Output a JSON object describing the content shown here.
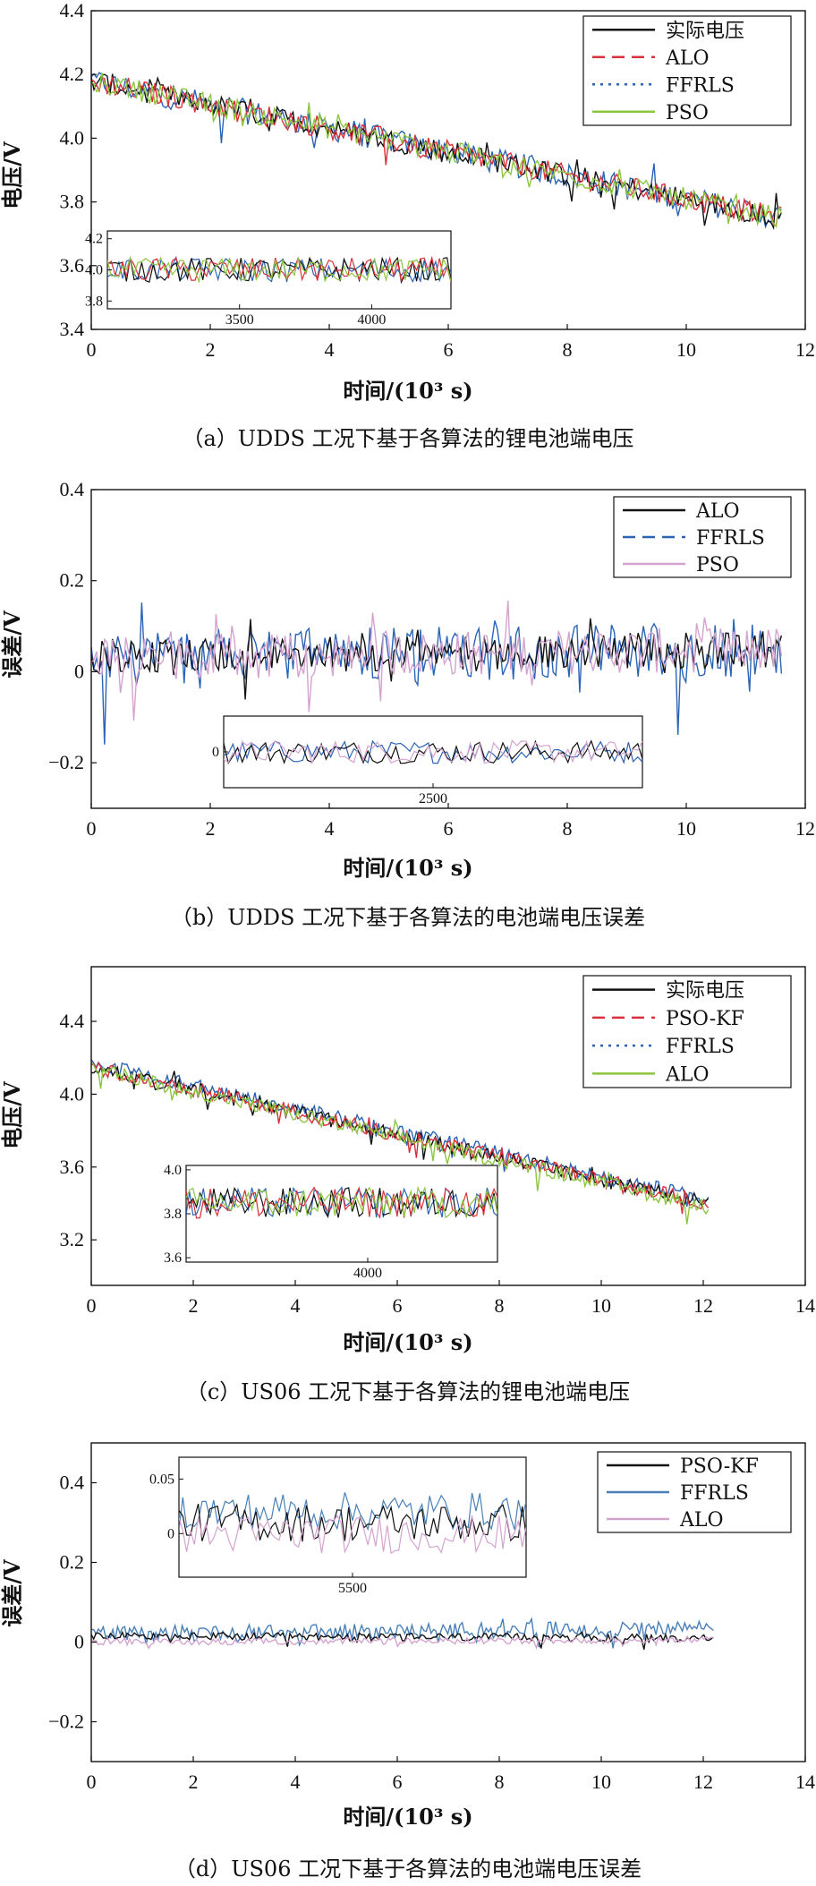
{
  "chart_data": [
    {
      "id": "a",
      "type": "line",
      "caption": "（a）UDDS 工况下基于各算法的锂电池端电压",
      "xlabel": "时间/(10³ s)",
      "ylabel": "电压/V",
      "xlim": [
        0,
        12
      ],
      "ylim": [
        3.4,
        4.4
      ],
      "xticks": [
        "0",
        "2",
        "4",
        "6",
        "8",
        "10",
        "12"
      ],
      "yticks": [
        "3.4",
        "3.6",
        "3.8",
        "4.0",
        "4.2",
        "4.4"
      ],
      "legend_position": "top-right",
      "series": [
        {
          "name": "实际电压",
          "color": "#111111",
          "style": "solid",
          "trend": {
            "x": [
              0,
              11.6
            ],
            "y": [
              4.18,
              3.75
            ]
          },
          "noise": 0.035
        },
        {
          "name": "ALO",
          "color": "#d9303a",
          "style": "dashed",
          "trend": {
            "x": [
              0,
              11.6
            ],
            "y": [
              4.18,
              3.75
            ]
          },
          "noise": 0.035
        },
        {
          "name": "FFRLS",
          "color": "#2b63b5",
          "style": "dotted",
          "trend": {
            "x": [
              0,
              11.6
            ],
            "y": [
              4.18,
              3.75
            ]
          },
          "noise": 0.04
        },
        {
          "name": "PSO",
          "color": "#8cc63f",
          "style": "solid",
          "trend": {
            "x": [
              0,
              11.6
            ],
            "y": [
              4.18,
              3.75
            ]
          },
          "noise": 0.035
        }
      ],
      "inset": {
        "xticks": [
          "3500",
          "4000"
        ],
        "yticks": [
          "3.8",
          "4.0",
          "4.2"
        ],
        "xlim": [
          3000,
          4300
        ],
        "ylim": [
          3.75,
          4.25
        ],
        "level": 4.0
      }
    },
    {
      "id": "b",
      "type": "line",
      "caption": "（b）UDDS 工况下基于各算法的电池端电压误差",
      "xlabel": "时间/(10³ s)",
      "ylabel": "误差/V",
      "xlim": [
        0,
        12
      ],
      "ylim": [
        -0.3,
        0.4
      ],
      "xticks": [
        "0",
        "2",
        "4",
        "6",
        "8",
        "10",
        "12"
      ],
      "yticks": [
        "−0.2",
        "0",
        "0.2",
        "0.4"
      ],
      "legend_position": "top-right",
      "series": [
        {
          "name": "ALO",
          "color": "#111111",
          "style": "solid",
          "trend": {
            "x": [
              0,
              11.6
            ],
            "y": [
              0.03,
              0.05
            ]
          },
          "noise": 0.04
        },
        {
          "name": "FFRLS",
          "color": "#2b63b5",
          "style": "dashed",
          "trend": {
            "x": [
              0,
              11.6
            ],
            "y": [
              0.03,
              0.05
            ]
          },
          "noise": 0.06
        },
        {
          "name": "PSO",
          "color": "#d4a3cf",
          "style": "solid",
          "trend": {
            "x": [
              0,
              11.6
            ],
            "y": [
              0.03,
              0.05
            ]
          },
          "noise": 0.05
        }
      ],
      "inset": {
        "xticks": [
          "2500"
        ],
        "yticks": [
          "0"
        ],
        "xlim": [
          1500,
          3500
        ],
        "ylim": [
          -0.15,
          0.15
        ],
        "level": 0
      }
    },
    {
      "id": "c",
      "type": "line",
      "caption": "（c）US06 工况下基于各算法的锂电池端电压",
      "xlabel": "时间/(10³ s)",
      "ylabel": "电压/V",
      "xlim": [
        0,
        14
      ],
      "ylim": [
        2.95,
        4.7
      ],
      "xticks": [
        "0",
        "2",
        "4",
        "6",
        "8",
        "10",
        "12",
        "14"
      ],
      "yticks": [
        "3.2",
        "3.6",
        "4.0",
        "4.4"
      ],
      "legend_position": "top-right",
      "series": [
        {
          "name": "实际电压",
          "color": "#111111",
          "style": "solid",
          "trend": {
            "x": [
              0,
              12.1
            ],
            "y": [
              4.15,
              3.4
            ]
          },
          "noise": 0.04
        },
        {
          "name": "PSO-KF",
          "color": "#d9303a",
          "style": "dashed",
          "trend": {
            "x": [
              0,
              12.1
            ],
            "y": [
              4.15,
              3.4
            ]
          },
          "noise": 0.04
        },
        {
          "name": "FFRLS",
          "color": "#2b63b5",
          "style": "dotted",
          "trend": {
            "x": [
              0,
              12.1
            ],
            "y": [
              4.17,
              3.42
            ]
          },
          "noise": 0.04
        },
        {
          "name": "ALO",
          "color": "#8cc63f",
          "style": "solid",
          "trend": {
            "x": [
              0,
              12.1
            ],
            "y": [
              4.14,
              3.38
            ]
          },
          "noise": 0.04
        }
      ],
      "inset": {
        "xticks": [
          "4000"
        ],
        "yticks": [
          "3.6",
          "3.8",
          "4.0"
        ],
        "xlim": [
          3300,
          4500
        ],
        "ylim": [
          3.58,
          4.02
        ],
        "level": 3.85
      }
    },
    {
      "id": "d",
      "type": "line",
      "caption": "（d）US06 工况下基于各算法的电池端电压误差",
      "xlabel": "时间/(10³ s)",
      "ylabel": "误差/V",
      "xlim": [
        0,
        14
      ],
      "ylim": [
        -0.3,
        0.5
      ],
      "xticks": [
        "0",
        "2",
        "4",
        "6",
        "8",
        "10",
        "12",
        "14"
      ],
      "yticks": [
        "−0.2",
        "0",
        "0.2",
        "0.4"
      ],
      "legend_position": "top-right",
      "series": [
        {
          "name": "PSO-KF",
          "color": "#111111",
          "style": "solid",
          "trend": {
            "x": [
              0,
              12.2
            ],
            "y": [
              0.015,
              0.01
            ]
          },
          "noise": 0.01
        },
        {
          "name": "FFRLS",
          "color": "#4a80b8",
          "style": "solid",
          "trend": {
            "x": [
              0,
              12.2
            ],
            "y": [
              0.02,
              0.035
            ]
          },
          "noise": 0.02
        },
        {
          "name": "ALO",
          "color": "#d4a3cf",
          "style": "solid",
          "trend": {
            "x": [
              0,
              12.2
            ],
            "y": [
              0.0,
              0.005
            ]
          },
          "noise": 0.008
        }
      ],
      "inset": {
        "xticks": [
          "5500"
        ],
        "yticks": [
          "0",
          "0.05"
        ],
        "xlim": [
          5000,
          6000
        ],
        "ylim": [
          -0.04,
          0.07
        ],
        "level": 0.01
      }
    }
  ]
}
